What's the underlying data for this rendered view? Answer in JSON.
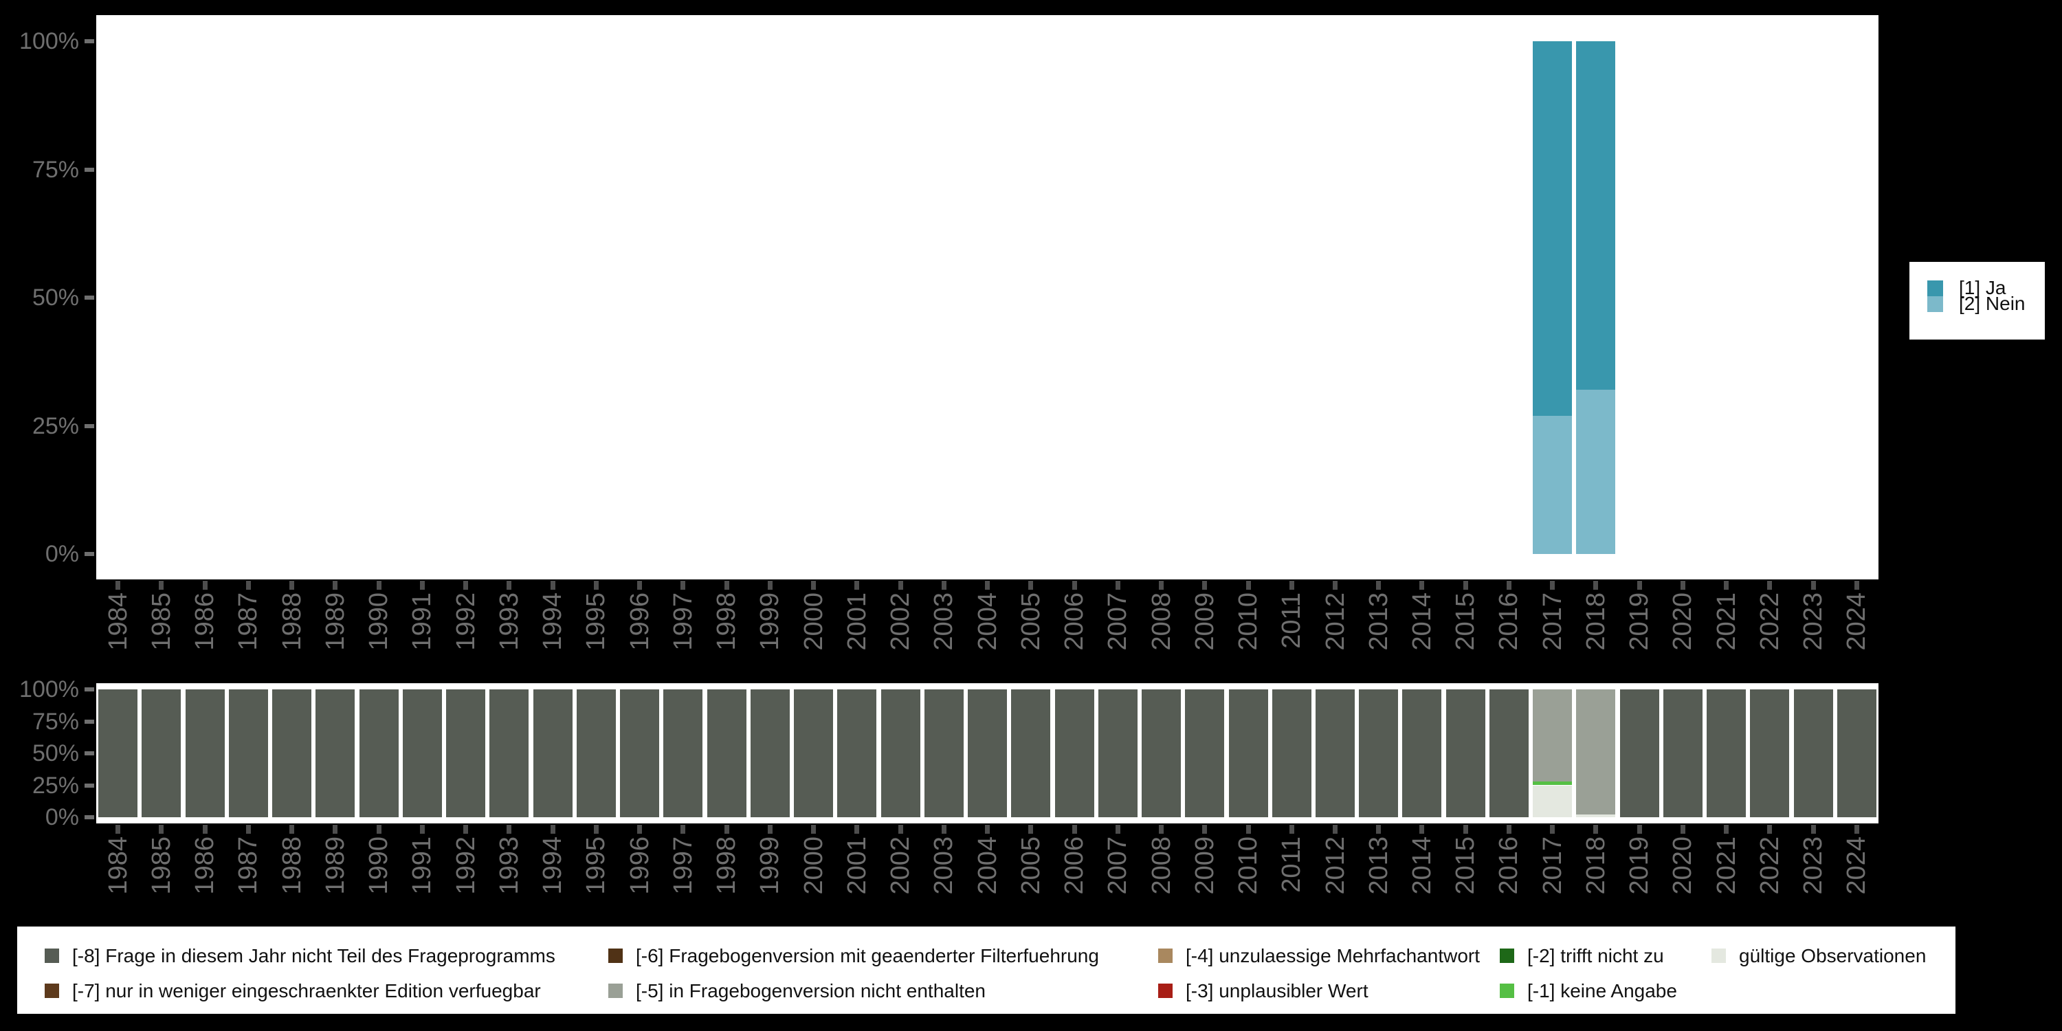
{
  "colors": {
    "background": "#000000",
    "plot_background": "#ffffff",
    "axis_text": "#6f6f6f",
    "y_tick_mark": "#6f6f6f",
    "x_tick_mark": "#4d4d4d",
    "legend_text": "#111111"
  },
  "years": [
    "1984",
    "1985",
    "1986",
    "1987",
    "1988",
    "1989",
    "1990",
    "1991",
    "1992",
    "1993",
    "1994",
    "1995",
    "1996",
    "1997",
    "1998",
    "1999",
    "2000",
    "2001",
    "2002",
    "2003",
    "2004",
    "2005",
    "2006",
    "2007",
    "2008",
    "2009",
    "2010",
    "2011",
    "2012",
    "2013",
    "2014",
    "2015",
    "2016",
    "2017",
    "2018",
    "2019",
    "2020",
    "2021",
    "2022",
    "2023",
    "2024"
  ],
  "y_axis_ticks": [
    {
      "pct": 0,
      "label": "0%"
    },
    {
      "pct": 25,
      "label": "25%"
    },
    {
      "pct": 50,
      "label": "50%"
    },
    {
      "pct": 75,
      "label": "75%"
    },
    {
      "pct": 100,
      "label": "100%"
    }
  ],
  "chart_data": [
    {
      "id": "responses",
      "type": "bar",
      "stacked": true,
      "ylim": [
        0,
        100
      ],
      "categories": [
        "1984",
        "1985",
        "1986",
        "1987",
        "1988",
        "1989",
        "1990",
        "1991",
        "1992",
        "1993",
        "1994",
        "1995",
        "1996",
        "1997",
        "1998",
        "1999",
        "2000",
        "2001",
        "2002",
        "2003",
        "2004",
        "2005",
        "2006",
        "2007",
        "2008",
        "2009",
        "2010",
        "2011",
        "2012",
        "2013",
        "2014",
        "2015",
        "2016",
        "2017",
        "2018",
        "2019",
        "2020",
        "2021",
        "2022",
        "2023",
        "2024"
      ],
      "series": [
        {
          "name": "[1] Ja",
          "color": "#3997ad",
          "default": 0,
          "values": {
            "2017": 73,
            "2018": 68
          }
        },
        {
          "name": "[2] Nein",
          "color": "#7cb9ca",
          "default": 0,
          "values": {
            "2017": 27,
            "2018": 32
          }
        }
      ],
      "stack_bottom_to_top": [
        "[2] Nein",
        "[1] Ja"
      ],
      "legend_position": "right"
    },
    {
      "id": "missing-values",
      "type": "bar",
      "stacked": true,
      "ylim": [
        0,
        100
      ],
      "categories": [
        "1984",
        "1985",
        "1986",
        "1987",
        "1988",
        "1989",
        "1990",
        "1991",
        "1992",
        "1993",
        "1994",
        "1995",
        "1996",
        "1997",
        "1998",
        "1999",
        "2000",
        "2001",
        "2002",
        "2003",
        "2004",
        "2005",
        "2006",
        "2007",
        "2008",
        "2009",
        "2010",
        "2011",
        "2012",
        "2013",
        "2014",
        "2015",
        "2016",
        "2017",
        "2018",
        "2019",
        "2020",
        "2021",
        "2022",
        "2023",
        "2024"
      ],
      "series": [
        {
          "name": "[-8] Frage in diesem Jahr nicht Teil des Frageprogramms",
          "color": "#565c54",
          "default": 100,
          "values": {
            "2017": 0,
            "2018": 0
          }
        },
        {
          "name": "[-7] nur in weniger eingeschraenkter Edition verfuegbar",
          "color": "#5d3a1c",
          "default": 0,
          "values": {}
        },
        {
          "name": "[-6] Fragebogenversion mit geaenderter Filterfuehrung",
          "color": "#503216",
          "default": 0,
          "values": {}
        },
        {
          "name": "[-5] in Fragebogenversion nicht enthalten",
          "color": "#9aa096",
          "default": 0,
          "values": {
            "2017": 72,
            "2018": 98
          }
        },
        {
          "name": "[-4] unzulaessige Mehrfachantwort",
          "color": "#a9885f",
          "default": 0,
          "values": {}
        },
        {
          "name": "[-3] unplausibler Wert",
          "color": "#a81e16",
          "default": 0,
          "values": {}
        },
        {
          "name": "[-2] trifft nicht zu",
          "color": "#1e6818",
          "default": 0,
          "values": {}
        },
        {
          "name": "[-1] keine Angabe",
          "color": "#55bf44",
          "default": 0,
          "values": {
            "2017": 3
          }
        },
        {
          "name": "gültige Observationen",
          "color": "#e4e8e0",
          "default": 0,
          "values": {
            "2017": 25,
            "2018": 2
          }
        }
      ],
      "stack_bottom_to_top": [
        "gültige Observationen",
        "[-1] keine Angabe",
        "[-2] trifft nicht zu",
        "[-3] unplausibler Wert",
        "[-4] unzulaessige Mehrfachantwort",
        "[-5] in Fragebogenversion nicht enthalten",
        "[-6] Fragebogenversion mit geaenderter Filterfuehrung",
        "[-7] nur in weniger eingeschraenkter Edition verfuegbar",
        "[-8] Frage in diesem Jahr nicht Teil des Frageprogramms"
      ],
      "legend_position": "bottom"
    }
  ],
  "legend_main": {
    "items": [
      {
        "label": "[1] Ja",
        "color": "#3997ad"
      },
      {
        "label": "[2] Nein",
        "color": "#7cb9ca"
      }
    ]
  },
  "legend_missing": {
    "columns": [
      [
        {
          "label": "[-8] Frage in diesem Jahr nicht Teil des Frageprogramms",
          "color": "#565c54"
        },
        {
          "label": "[-7] nur in weniger eingeschraenkter Edition verfuegbar",
          "color": "#5d3a1c"
        }
      ],
      [
        {
          "label": "[-6] Fragebogenversion mit geaenderter Filterfuehrung",
          "color": "#503216"
        },
        {
          "label": "[-5] in Fragebogenversion nicht enthalten",
          "color": "#9aa096"
        }
      ],
      [
        {
          "label": "[-4] unzulaessige Mehrfachantwort",
          "color": "#a9885f"
        },
        {
          "label": "[-3] unplausibler Wert",
          "color": "#a81e16"
        }
      ],
      [
        {
          "label": "[-2] trifft nicht zu",
          "color": "#1e6818"
        },
        {
          "label": "[-1] keine Angabe",
          "color": "#55bf44"
        }
      ],
      [
        {
          "label": "gültige Observationen",
          "color": "#e4e8e0"
        }
      ]
    ]
  }
}
